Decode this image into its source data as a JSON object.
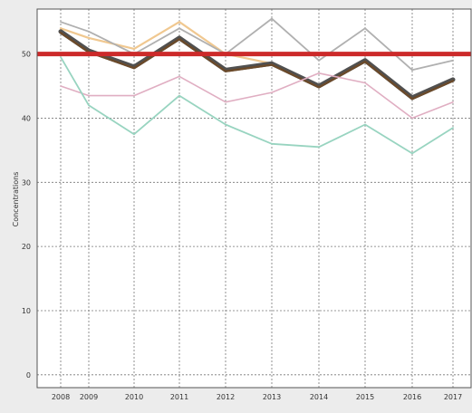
{
  "chart_data": {
    "type": "line",
    "title": "",
    "xlabel": "",
    "ylabel": "Concentrations",
    "x": [
      "2008",
      "2009",
      "2010",
      "2011",
      "2012",
      "2013",
      "2014",
      "2015",
      "2016",
      "2017"
    ],
    "ylim": [
      -2,
      57
    ],
    "yticks": [
      0,
      10,
      20,
      30,
      40,
      50
    ],
    "grid": true,
    "legend": "none",
    "reference_line": {
      "value": 50,
      "color": "#cc2a2a"
    },
    "series": [
      {
        "values": [
          54.0,
          52.5,
          50.8,
          55.0,
          50.0,
          48.5,
          45.0,
          49.0,
          43.0,
          46.0
        ],
        "color": "#f0c890"
      },
      {
        "values": [
          55.0,
          53.5,
          50.0,
          54.0,
          50.0,
          55.5,
          49.0,
          54.0,
          47.5,
          49.0
        ],
        "color": "#b0b0b0"
      },
      {
        "values": [
          53.5,
          50.5,
          48.0,
          52.5,
          47.5,
          48.5,
          45.0,
          49.0,
          43.2,
          46.0
        ],
        "color": "#505050"
      },
      {
        "values": [
          53.3,
          50.3,
          47.8,
          52.3,
          47.3,
          48.3,
          44.8,
          48.8,
          43.0,
          45.8
        ],
        "color": "#6b4a2a"
      },
      {
        "values": [
          45.0,
          43.5,
          43.5,
          46.5,
          42.5,
          44.0,
          47.0,
          45.5,
          40.0,
          42.5
        ],
        "color": "#e0aec2"
      },
      {
        "values": [
          49.5,
          42.0,
          37.5,
          43.5,
          39.0,
          36.0,
          35.5,
          39.0,
          34.5,
          38.5
        ],
        "color": "#98d4c0"
      }
    ]
  }
}
